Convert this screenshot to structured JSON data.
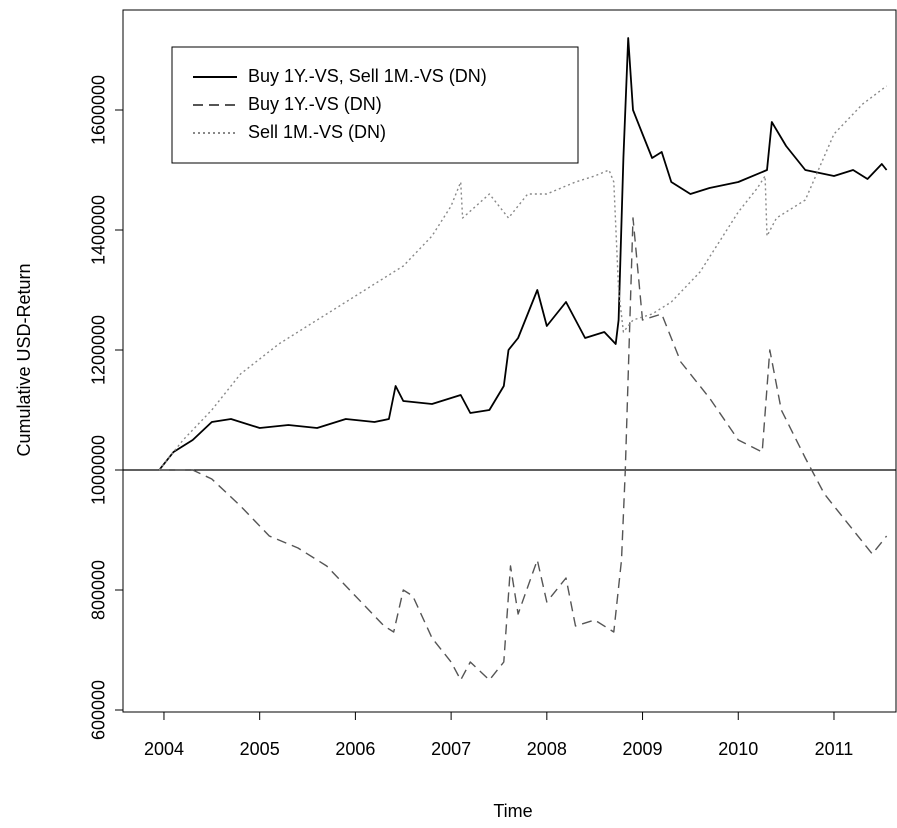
{
  "chart_data": {
    "type": "line",
    "xlabel": "Time",
    "ylabel": "Cumulative USD-Return",
    "xlim": [
      2003.572,
      2011.648
    ],
    "xticks": [
      2004,
      2005,
      2006,
      2007,
      2008,
      2009,
      2010,
      2011
    ],
    "ylim": [
      596667,
      1766667
    ],
    "yticks": [
      600000,
      800000,
      1000000,
      1200000,
      1400000,
      1600000
    ],
    "hline": 1000000,
    "legend": "top-left",
    "series": [
      {
        "name": "Buy 1Y.-VS, Sell 1M.-VS (DN)",
        "color": "#000000",
        "linestyle": "solid",
        "x": [
          2003.95,
          2004.1,
          2004.3,
          2004.5,
          2004.7,
          2005.0,
          2005.3,
          2005.6,
          2005.9,
          2006.2,
          2006.35,
          2006.42,
          2006.5,
          2006.8,
          2007.1,
          2007.2,
          2007.4,
          2007.55,
          2007.6,
          2007.7,
          2007.9,
          2008.0,
          2008.2,
          2008.4,
          2008.6,
          2008.72,
          2008.75,
          2008.8,
          2008.85,
          2008.9,
          2009.0,
          2009.1,
          2009.2,
          2009.3,
          2009.5,
          2009.7,
          2010.0,
          2010.3,
          2010.35,
          2010.5,
          2010.7,
          2011.0,
          2011.2,
          2011.35,
          2011.5,
          2011.55
        ],
        "values": [
          1000000,
          1030000,
          1050000,
          1080000,
          1085000,
          1070000,
          1075000,
          1070000,
          1085000,
          1080000,
          1085000,
          1140000,
          1115000,
          1110000,
          1125000,
          1095000,
          1100000,
          1140000,
          1200000,
          1220000,
          1300000,
          1240000,
          1280000,
          1220000,
          1230000,
          1210000,
          1250000,
          1520000,
          1720000,
          1600000,
          1560000,
          1520000,
          1530000,
          1480000,
          1460000,
          1470000,
          1480000,
          1500000,
          1580000,
          1540000,
          1500000,
          1490000,
          1500000,
          1485000,
          1510000,
          1500000
        ]
      },
      {
        "name": "Buy 1Y.-VS (DN)",
        "color": "#555555",
        "linestyle": "dashed",
        "x": [
          2003.95,
          2004.3,
          2004.5,
          2004.8,
          2005.1,
          2005.4,
          2005.7,
          2006.0,
          2006.3,
          2006.4,
          2006.5,
          2006.6,
          2006.8,
          2007.0,
          2007.1,
          2007.2,
          2007.4,
          2007.55,
          2007.62,
          2007.7,
          2007.9,
          2008.0,
          2008.2,
          2008.3,
          2008.5,
          2008.7,
          2008.78,
          2008.82,
          2008.9,
          2009.0,
          2009.2,
          2009.4,
          2009.7,
          2010.0,
          2010.25,
          2010.33,
          2010.45,
          2010.7,
          2010.9,
          2011.1,
          2011.3,
          2011.4,
          2011.55
        ],
        "values": [
          1000000,
          1000000,
          985000,
          940000,
          890000,
          870000,
          840000,
          790000,
          740000,
          730000,
          800000,
          790000,
          720000,
          680000,
          650000,
          680000,
          650000,
          680000,
          840000,
          760000,
          850000,
          780000,
          820000,
          740000,
          750000,
          730000,
          850000,
          1000000,
          1420000,
          1250000,
          1260000,
          1180000,
          1120000,
          1050000,
          1030000,
          1200000,
          1100000,
          1020000,
          960000,
          920000,
          880000,
          860000,
          890000
        ]
      },
      {
        "name": "Sell 1M.-VS (DN)",
        "color": "#888888",
        "linestyle": "dotted",
        "x": [
          2003.95,
          2004.2,
          2004.5,
          2004.8,
          2005.2,
          2005.5,
          2005.8,
          2006.2,
          2006.5,
          2006.8,
          2007.0,
          2007.1,
          2007.12,
          2007.4,
          2007.6,
          2007.8,
          2008.0,
          2008.3,
          2008.5,
          2008.65,
          2008.7,
          2008.75,
          2008.8,
          2008.9,
          2009.1,
          2009.3,
          2009.6,
          2010.0,
          2010.2,
          2010.28,
          2010.3,
          2010.4,
          2010.7,
          2011.0,
          2011.3,
          2011.55
        ],
        "values": [
          1000000,
          1050000,
          1100000,
          1160000,
          1210000,
          1240000,
          1270000,
          1310000,
          1340000,
          1390000,
          1440000,
          1480000,
          1420000,
          1460000,
          1420000,
          1460000,
          1460000,
          1480000,
          1490000,
          1500000,
          1480000,
          1300000,
          1230000,
          1250000,
          1260000,
          1280000,
          1330000,
          1430000,
          1470000,
          1490000,
          1390000,
          1420000,
          1450000,
          1560000,
          1610000,
          1640000
        ]
      }
    ]
  }
}
